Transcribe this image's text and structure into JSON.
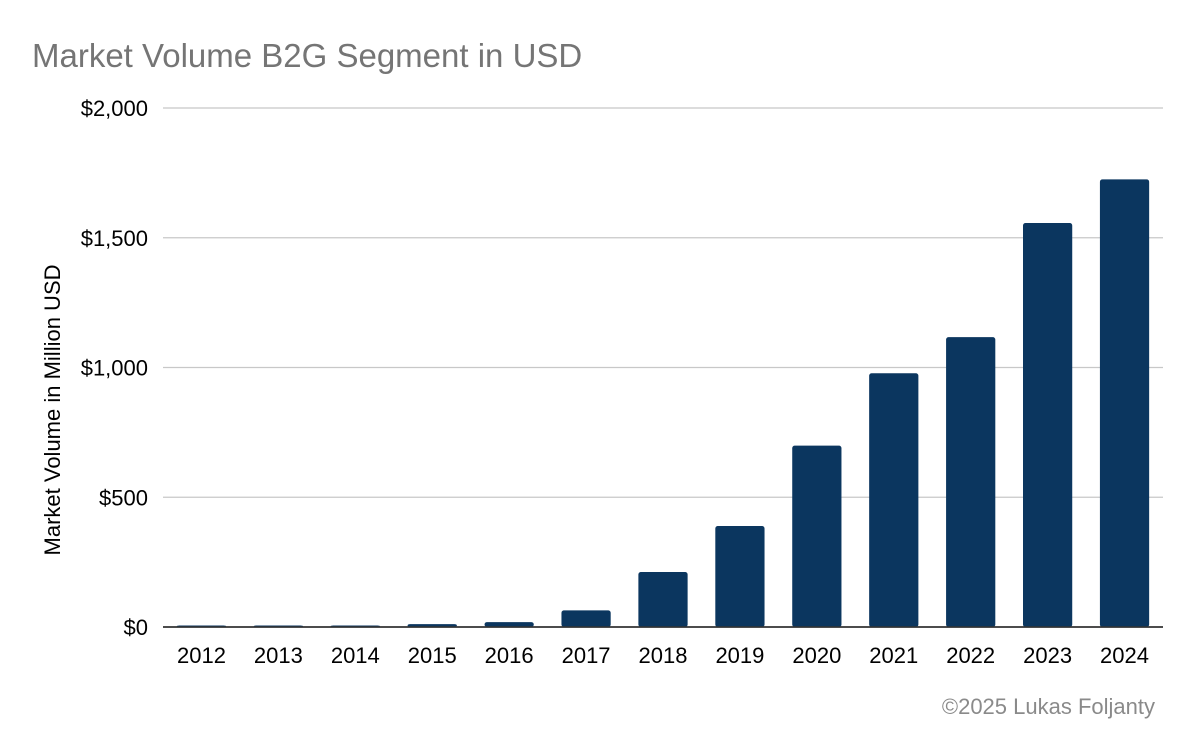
{
  "chart_data": {
    "type": "bar",
    "title": "Market Volume B2G Segment in USD",
    "xlabel": "",
    "ylabel": "Market Volume in Million USD",
    "categories": [
      "2012",
      "2013",
      "2014",
      "2015",
      "2016",
      "2017",
      "2018",
      "2019",
      "2020",
      "2021",
      "2022",
      "2023",
      "2024"
    ],
    "values": [
      3,
      3,
      4,
      11,
      19,
      64,
      212,
      389,
      699,
      978,
      1117,
      1557,
      1725
    ],
    "ylim": [
      0,
      2000
    ],
    "yticks": [
      0,
      500,
      1000,
      1500,
      2000
    ],
    "ytick_labels": [
      "$0",
      "$500",
      "$1,000",
      "$1,500",
      "$2,000"
    ],
    "grid": true,
    "legend": "none",
    "bar_color": "#0b365f"
  },
  "footer": {
    "credit": "©2025 Lukas Foljanty"
  }
}
